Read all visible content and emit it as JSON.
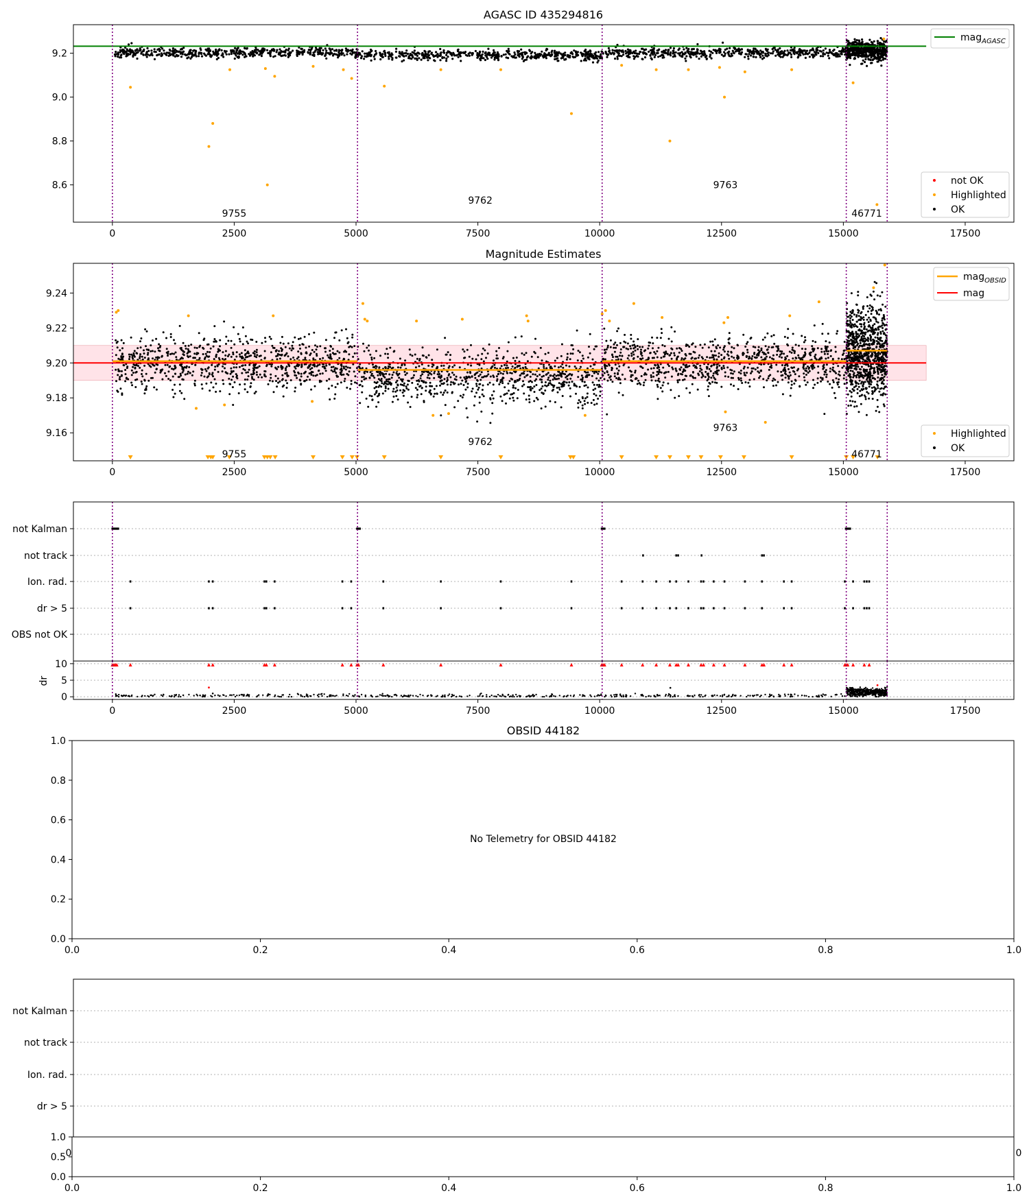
{
  "figure": {
    "colors": {
      "ok": "#000000",
      "highlighted": "#FFA500",
      "not_ok": "#FF0000",
      "agasc": "#008000",
      "mag": "#FF0000",
      "mag_obsid": "#FFA500",
      "divider": "#800080",
      "band": "#FFC0CB"
    }
  },
  "chart_data": [
    {
      "id": "agasc",
      "type": "scatter",
      "title": "AGASC ID 435294816",
      "xlim": [
        -800,
        18500
      ],
      "ylim": [
        8.43,
        9.33
      ],
      "xticks": [
        "0",
        "2500",
        "5000",
        "7500",
        "10000",
        "12500",
        "15000",
        "17500"
      ],
      "xtick_values": [
        0,
        2500,
        5000,
        7500,
        10000,
        12500,
        15000,
        17500
      ],
      "yticks": [
        "8.6",
        "8.8",
        "9.0",
        "9.2"
      ],
      "ytick_values": [
        8.6,
        8.8,
        9.0,
        9.2
      ],
      "obs_dividers": [
        0,
        5030,
        10050,
        15060,
        15900
      ],
      "obs_labels": [
        {
          "text": "9755",
          "x": 2500,
          "y": 8.47
        },
        {
          "text": "9762",
          "x": 7550,
          "y": 8.53
        },
        {
          "text": "9763",
          "x": 12580,
          "y": 8.6
        },
        {
          "text": "46771",
          "x": 15480,
          "y": 8.47
        }
      ],
      "agasc_mag": 9.232,
      "agasc_line_xrange": [
        -800,
        16700
      ],
      "ok_band": [
        {
          "x0": 50,
          "x1": 5030,
          "mean": 9.203,
          "spread": 0.012
        },
        {
          "x0": 5030,
          "x1": 10050,
          "mean": 9.192,
          "spread": 0.012
        },
        {
          "x0": 10050,
          "x1": 15060,
          "mean": 9.203,
          "spread": 0.012
        },
        {
          "x0": 15060,
          "x1": 15900,
          "mean": 9.21,
          "spread": 0.022
        }
      ],
      "highlighted": [
        [
          370,
          9.045
        ],
        [
          1980,
          8.775
        ],
        [
          2060,
          8.88
        ],
        [
          2410,
          9.125
        ],
        [
          3140,
          9.13
        ],
        [
          3180,
          8.6
        ],
        [
          3330,
          9.095
        ],
        [
          4120,
          9.14
        ],
        [
          4740,
          9.125
        ],
        [
          4910,
          9.085
        ],
        [
          5580,
          9.05
        ],
        [
          6740,
          9.125
        ],
        [
          7970,
          9.125
        ],
        [
          9420,
          8.925
        ],
        [
          10450,
          9.145
        ],
        [
          11160,
          9.125
        ],
        [
          11440,
          8.8
        ],
        [
          11820,
          9.125
        ],
        [
          12460,
          9.135
        ],
        [
          12560,
          9.0
        ],
        [
          12980,
          9.115
        ],
        [
          13940,
          9.125
        ],
        [
          15200,
          9.065
        ],
        [
          15690,
          8.51
        ],
        [
          15830,
          9.265
        ]
      ],
      "legend_top": [
        {
          "label_main": "mag",
          "label_sub": "AGASC",
          "marker": "line",
          "color": "#008000"
        }
      ],
      "legend_bottom": [
        {
          "label": "not OK",
          "marker": "dot",
          "color": "#FF0000"
        },
        {
          "label": "Highlighted",
          "marker": "dot",
          "color": "#FFA500"
        },
        {
          "label": "OK",
          "marker": "dot",
          "color": "#000000"
        }
      ]
    },
    {
      "id": "magest",
      "type": "scatter",
      "title": "Magnitude Estimates",
      "xlim": [
        -800,
        18500
      ],
      "ylim": [
        9.144,
        9.257
      ],
      "xticks": [
        "0",
        "2500",
        "5000",
        "7500",
        "10000",
        "12500",
        "15000",
        "17500"
      ],
      "xtick_values": [
        0,
        2500,
        5000,
        7500,
        10000,
        12500,
        15000,
        17500
      ],
      "yticks": [
        "9.16",
        "9.18",
        "9.20",
        "9.22",
        "9.24"
      ],
      "ytick_values": [
        9.16,
        9.18,
        9.2,
        9.22,
        9.24
      ],
      "obs_dividers": [
        0,
        5030,
        10050,
        15060,
        15900
      ],
      "obs_labels": [
        {
          "text": "9755",
          "x": 2500,
          "y": 9.148
        },
        {
          "text": "9762",
          "x": 7550,
          "y": 9.155
        },
        {
          "text": "9763",
          "x": 12580,
          "y": 9.163
        },
        {
          "text": "46771",
          "x": 15480,
          "y": 9.148
        }
      ],
      "mag": 9.2,
      "mag_band": [
        9.19,
        9.21
      ],
      "mag_line_xrange": [
        -800,
        16700
      ],
      "mag_obsid": [
        {
          "x0": 0,
          "x1": 5030,
          "y": 9.201
        },
        {
          "x0": 5030,
          "x1": 10050,
          "y": 9.196
        },
        {
          "x0": 10050,
          "x1": 15060,
          "y": 9.201
        },
        {
          "x0": 15060,
          "x1": 15900,
          "y": 9.207
        }
      ],
      "ok_band": [
        {
          "x0": 50,
          "x1": 5030,
          "mean": 9.2,
          "spread": 0.008
        },
        {
          "x0": 5030,
          "x1": 10050,
          "mean": 9.192,
          "spread": 0.008
        },
        {
          "x0": 10050,
          "x1": 15060,
          "mean": 9.2,
          "spread": 0.008
        },
        {
          "x0": 15060,
          "x1": 15900,
          "mean": 9.205,
          "spread": 0.013
        }
      ],
      "highlighted": [
        [
          80,
          9.229
        ],
        [
          120,
          9.23
        ],
        [
          1560,
          9.227
        ],
        [
          1720,
          9.174
        ],
        [
          2300,
          9.176
        ],
        [
          3300,
          9.227
        ],
        [
          4100,
          9.178
        ],
        [
          5140,
          9.234
        ],
        [
          5180,
          9.225
        ],
        [
          5230,
          9.224
        ],
        [
          6240,
          9.224
        ],
        [
          6580,
          9.17
        ],
        [
          6900,
          9.171
        ],
        [
          7180,
          9.225
        ],
        [
          8500,
          9.227
        ],
        [
          8530,
          9.224
        ],
        [
          9700,
          9.17
        ],
        [
          10050,
          9.228
        ],
        [
          10120,
          9.23
        ],
        [
          10200,
          9.224
        ],
        [
          10700,
          9.234
        ],
        [
          11280,
          9.226
        ],
        [
          12550,
          9.223
        ],
        [
          12580,
          9.172
        ],
        [
          12630,
          9.226
        ],
        [
          13400,
          9.166
        ],
        [
          13900,
          9.227
        ],
        [
          14500,
          9.235
        ],
        [
          15620,
          9.243
        ],
        [
          15850,
          9.256
        ]
      ],
      "highlighted_below": [
        370,
        1960,
        2020,
        2060,
        2400,
        3120,
        3180,
        3240,
        3340,
        4120,
        4720,
        4920,
        5020,
        5580,
        6740,
        7970,
        9400,
        9460,
        10450,
        11160,
        11440,
        11820,
        12080,
        12480,
        12960,
        13940,
        15060,
        15200,
        15700
      ],
      "legend_top": [
        {
          "label_main": "mag",
          "label_sub": "OBSID",
          "marker": "line",
          "color": "#FFA500"
        },
        {
          "label_main": "mag",
          "label_sub": "",
          "marker": "line",
          "color": "#FF0000"
        }
      ],
      "legend_bottom": [
        {
          "label": "Highlighted",
          "marker": "dot",
          "color": "#FFA500"
        },
        {
          "label": "OK",
          "marker": "dot",
          "color": "#000000"
        }
      ]
    },
    {
      "id": "flags",
      "type": "scatter",
      "xlim": [
        -800,
        18500
      ],
      "categories": [
        "not Kalman",
        "not track",
        "Ion. rad.",
        "dr > 5",
        "OBS not OK"
      ],
      "obs_dividers": [
        0,
        5030,
        10050,
        15060,
        15900
      ],
      "events": {
        "not Kalman": [
          0,
          30,
          60,
          90,
          120,
          5020,
          5050,
          5080,
          10040,
          10070,
          10100,
          15050,
          15080,
          15110,
          15140
        ],
        "not track": [
          10890,
          11570,
          11610,
          12090,
          13330,
          13370
        ],
        "Ion. rad.": [
          370,
          1980,
          2060,
          3120,
          3160,
          3330,
          4720,
          4900,
          5560,
          6740,
          7970,
          9420,
          10450,
          10880,
          11160,
          11440,
          11570,
          11820,
          12080,
          12130,
          12340,
          12560,
          12980,
          13330,
          13780,
          13940,
          15030,
          15200,
          15430,
          15480,
          15530
        ],
        "dr > 5": [
          370,
          1980,
          2060,
          3120,
          3160,
          3330,
          4720,
          4900,
          5560,
          6740,
          7970,
          9420,
          10450,
          10880,
          11160,
          11440,
          11570,
          11820,
          12080,
          12130,
          12340,
          12560,
          12980,
          13330,
          13780,
          13940,
          15030,
          15200,
          15430,
          15480,
          15530
        ],
        "OBS not OK": []
      }
    },
    {
      "id": "dr",
      "type": "scatter",
      "ylabel": "dr",
      "xlim": [
        -800,
        18500
      ],
      "ylim": [
        -0.8,
        10.8
      ],
      "xticks": [
        "0",
        "2500",
        "5000",
        "7500",
        "10000",
        "12500",
        "15000",
        "17500"
      ],
      "xtick_values": [
        0,
        2500,
        5000,
        7500,
        10000,
        12500,
        15000,
        17500
      ],
      "yticks": [
        "0",
        "5",
        "10"
      ],
      "ytick_values": [
        0,
        5,
        10
      ],
      "obs_dividers": [
        0,
        5030,
        10050,
        15060,
        15900
      ],
      "not_ok_top_value": 10,
      "not_ok_top_x": [
        0,
        30,
        60,
        90,
        370,
        1980,
        2060,
        3120,
        3160,
        3330,
        4720,
        4900,
        5020,
        5050,
        5560,
        6740,
        7970,
        9420,
        10040,
        10070,
        10100,
        10450,
        10880,
        11160,
        11440,
        11570,
        11610,
        11820,
        12080,
        12130,
        12340,
        12560,
        12980,
        13330,
        13370,
        13780,
        13940,
        15030,
        15060,
        15090,
        15200,
        15430,
        15530
      ],
      "not_ok_points": [
        [
          1980,
          2.8
        ],
        [
          15700,
          3.5
        ]
      ],
      "ok_outliers": [
        [
          11450,
          2.7
        ],
        [
          2060,
          1.0
        ],
        [
          3200,
          0.8
        ]
      ],
      "ok_band": [
        {
          "x0": 50,
          "x1": 15060,
          "mean": 0.3,
          "spread": 0.25
        },
        {
          "x0": 15060,
          "x1": 15900,
          "mean": 1.4,
          "spread": 0.6
        }
      ]
    },
    {
      "id": "obsid",
      "type": "scatter",
      "title": "OBSID 44182",
      "message": "No Telemetry for OBSID 44182",
      "xlim": [
        0,
        1
      ],
      "ylim": [
        0,
        1
      ],
      "xticks": [
        "0.0",
        "0.2",
        "0.4",
        "0.6",
        "0.8",
        "1.0"
      ],
      "xtick_values": [
        0,
        0.2,
        0.4,
        0.6,
        0.8,
        1.0
      ],
      "yticks": [
        "0.0",
        "0.2",
        "0.4",
        "0.6",
        "0.8",
        "1.0"
      ],
      "ytick_values": [
        0,
        0.2,
        0.4,
        0.6,
        0.8,
        1.0
      ]
    },
    {
      "id": "flags2",
      "type": "scatter",
      "categories": [
        "not Kalman",
        "not track",
        "Ion. rad.",
        "dr > 5"
      ],
      "hidden_tick_left": "0",
      "hidden_tick_right": "0"
    },
    {
      "id": "small",
      "type": "scatter",
      "xlim": [
        0,
        1
      ],
      "ylim": [
        0,
        1
      ],
      "xticks": [
        "0.0",
        "0.2",
        "0.4",
        "0.6",
        "0.8",
        "1.0"
      ],
      "xtick_values": [
        0,
        0.2,
        0.4,
        0.6,
        0.8,
        1.0
      ],
      "yticks": [
        "0.0",
        "0.5",
        "1.0"
      ],
      "ytick_values": [
        0,
        0.5,
        1.0
      ]
    }
  ]
}
